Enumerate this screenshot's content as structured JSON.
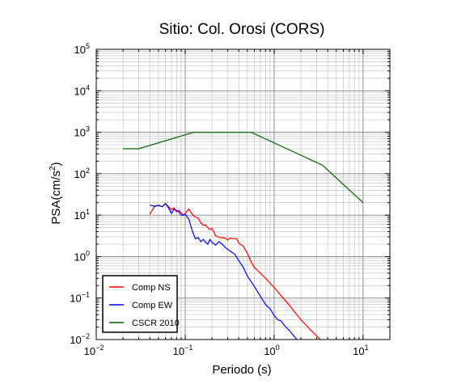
{
  "chart_data": {
    "type": "line",
    "title": "Sitio: Col. Orosi (CORS)",
    "xlabel": "Periodo (s)",
    "ylabel": "PSA(cm/s2)",
    "ylabel_base": "PSA(cm/s",
    "ylabel_sup": "2",
    "ylabel_tail": ")",
    "x_scale": "log",
    "y_scale": "log",
    "xlim": [
      0.01,
      20
    ],
    "ylim": [
      0.01,
      100000
    ],
    "x_ticks": [
      {
        "value": 0.01,
        "base": "10",
        "exp": "−2"
      },
      {
        "value": 0.1,
        "base": "10",
        "exp": "−1"
      },
      {
        "value": 1,
        "base": "10",
        "exp": "0"
      },
      {
        "value": 10,
        "base": "10",
        "exp": "1"
      }
    ],
    "y_ticks": [
      {
        "value": 0.01,
        "base": "10",
        "exp": "−2"
      },
      {
        "value": 0.1,
        "base": "10",
        "exp": "−1"
      },
      {
        "value": 1,
        "base": "10",
        "exp": "0"
      },
      {
        "value": 10,
        "base": "10",
        "exp": "1"
      },
      {
        "value": 100,
        "base": "10",
        "exp": "2"
      },
      {
        "value": 1000,
        "base": "10",
        "exp": "3"
      },
      {
        "value": 10000,
        "base": "10",
        "exp": "4"
      },
      {
        "value": 100000,
        "base": "10",
        "exp": "5"
      }
    ],
    "grid": true,
    "legend_position": "bottom-left",
    "series": [
      {
        "name": "Comp NS",
        "color": "#ff0000",
        "x": [
          0.04,
          0.045,
          0.05,
          0.055,
          0.06,
          0.065,
          0.07,
          0.075,
          0.08,
          0.085,
          0.09,
          0.095,
          0.1,
          0.11,
          0.12,
          0.13,
          0.14,
          0.15,
          0.16,
          0.17,
          0.18,
          0.19,
          0.2,
          0.22,
          0.24,
          0.26,
          0.28,
          0.3,
          0.32,
          0.35,
          0.38,
          0.4,
          0.45,
          0.5,
          0.55,
          0.6,
          0.7,
          0.8,
          1.0,
          1.5,
          2.0,
          2.5,
          3.3
        ],
        "y": [
          10.5,
          16,
          17.5,
          16,
          19,
          16,
          13.5,
          15,
          12,
          13,
          11.5,
          10,
          11,
          14,
          10.5,
          9,
          8.5,
          6.5,
          5.7,
          5.8,
          5,
          4.5,
          4.8,
          3.2,
          2.9,
          2.85,
          2.85,
          2.5,
          2.8,
          2.7,
          2.75,
          2.1,
          1.8,
          1.2,
          0.75,
          0.55,
          0.4,
          0.3,
          0.18,
          0.065,
          0.03,
          0.018,
          0.01
        ]
      },
      {
        "name": "Comp EW",
        "color": "#0000ff",
        "x": [
          0.04,
          0.045,
          0.05,
          0.055,
          0.06,
          0.065,
          0.07,
          0.075,
          0.08,
          0.085,
          0.09,
          0.095,
          0.1,
          0.11,
          0.12,
          0.13,
          0.14,
          0.15,
          0.16,
          0.17,
          0.18,
          0.19,
          0.2,
          0.22,
          0.24,
          0.26,
          0.28,
          0.3,
          0.33,
          0.36,
          0.4,
          0.45,
          0.5,
          0.55,
          0.6,
          0.7,
          0.8,
          0.9,
          1.0,
          1.1,
          1.2,
          1.3,
          1.5,
          1.8
        ],
        "y": [
          17.5,
          16.5,
          17,
          16,
          19,
          15,
          11,
          14,
          13,
          12,
          10,
          10,
          10.5,
          8,
          4.2,
          2.7,
          2.9,
          2.3,
          2.6,
          2.2,
          2.0,
          2.6,
          2.2,
          1.9,
          2.3,
          2.0,
          1.7,
          1.5,
          1.3,
          1.15,
          0.8,
          0.55,
          0.34,
          0.25,
          0.19,
          0.11,
          0.07,
          0.055,
          0.038,
          0.03,
          0.028,
          0.022,
          0.016,
          0.01
        ]
      },
      {
        "name": "CSCR 2010",
        "color": "#006400",
        "x": [
          0.02,
          0.03,
          0.125,
          0.55,
          3.5,
          10
        ],
        "y": [
          400,
          400,
          1000,
          1000,
          160,
          20
        ]
      }
    ]
  }
}
